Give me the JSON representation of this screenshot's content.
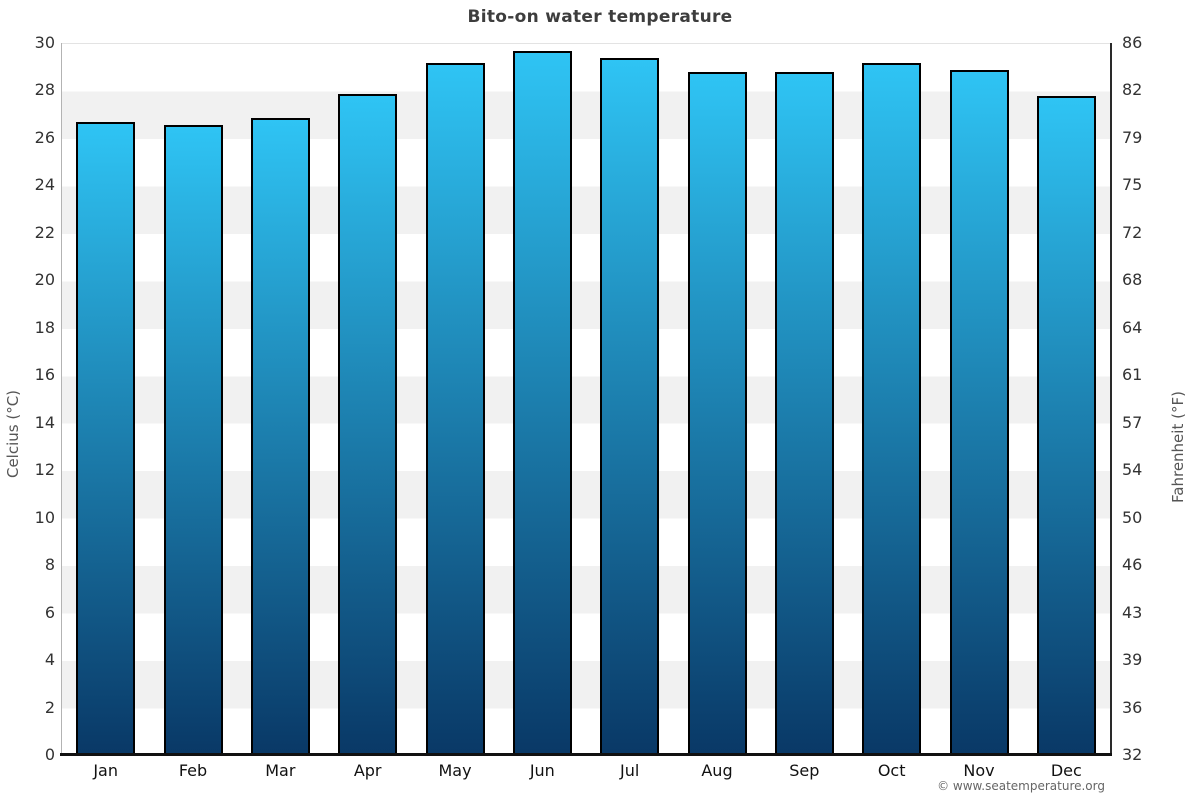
{
  "title": "Bito-on water temperature",
  "watermark": "© www.seatemperature.org",
  "chart_data": {
    "type": "bar",
    "title": "Bito-on water temperature",
    "categories": [
      "Jan",
      "Feb",
      "Mar",
      "Apr",
      "May",
      "Jun",
      "Jul",
      "Aug",
      "Sep",
      "Oct",
      "Nov",
      "Dec"
    ],
    "values": [
      26.7,
      26.6,
      26.9,
      27.9,
      29.2,
      29.7,
      29.4,
      28.8,
      28.8,
      29.2,
      28.9,
      27.8
    ],
    "unit": "°C",
    "ylabel_left": "Celcius (°C)",
    "ylabel_right": "Fahrenheit (°F)",
    "ylim": [
      0,
      30
    ],
    "celsius_ticks": [
      0,
      2,
      4,
      6,
      8,
      10,
      12,
      14,
      16,
      18,
      20,
      22,
      24,
      26,
      28,
      30
    ],
    "fahrenheit_ticks": [
      32,
      36,
      39,
      43,
      46,
      50,
      54,
      57,
      61,
      64,
      68,
      72,
      75,
      79,
      82,
      86
    ],
    "legend": null,
    "grid": "horizontal-bands",
    "colors": {
      "bar_gradient_top": "#2fc4f4",
      "bar_gradient_bottom": "#093866",
      "bar_border": "#000000",
      "band_light": "#ffffff",
      "band_shaded": "#f1f1f1",
      "title_text": "#3d3d3d",
      "tick_text": "#333333",
      "month_text": "#111111",
      "axis_label_text": "#555555",
      "watermark_text": "#666666"
    }
  }
}
